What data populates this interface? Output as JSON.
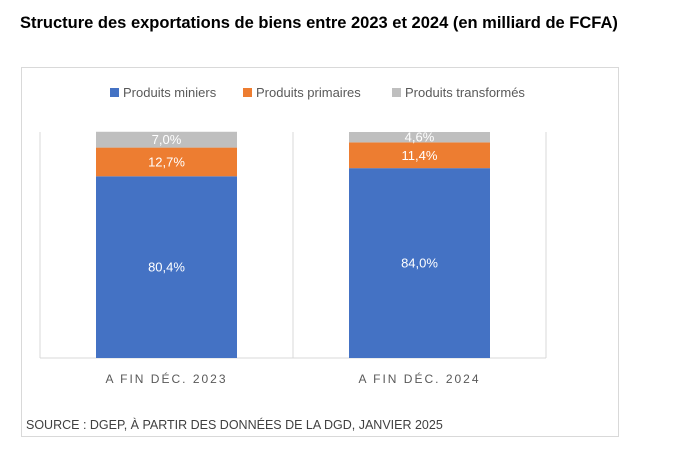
{
  "title": "Structure des exportations de biens entre 2023 et 2024 (en milliard de FCFA)",
  "source": "SOURCE : DGEP, À PARTIR DES DONNÉES DE LA DGD, JANVIER 2025",
  "chart_data": {
    "type": "bar",
    "stacked": true,
    "percent": true,
    "categories": [
      "A FIN DÉC. 2023",
      "A FIN DÉC. 2024"
    ],
    "series": [
      {
        "name": "Produits miniers",
        "values": [
          80.4,
          84.0
        ],
        "labels": [
          "80,4%",
          "84,0%"
        ],
        "color": "#4472c4"
      },
      {
        "name": "Produits primaires",
        "values": [
          12.7,
          11.4
        ],
        "labels": [
          "12,7%",
          "11,4%"
        ],
        "color": "#ed7d31"
      },
      {
        "name": "Produits transformés",
        "values": [
          7.0,
          4.6
        ],
        "labels": [
          "7,0%",
          "4,6%"
        ],
        "color": "#bfbfbf"
      }
    ],
    "ylim": [
      0,
      100
    ],
    "legend_position": "top",
    "grid": "vertical"
  }
}
